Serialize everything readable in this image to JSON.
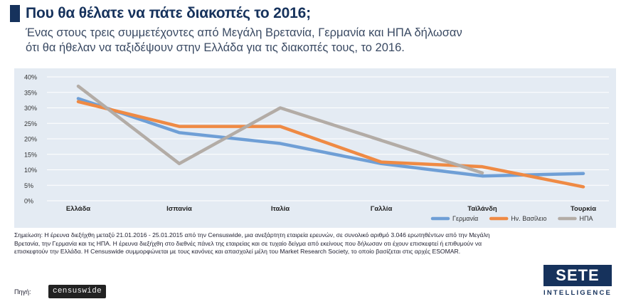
{
  "header": {
    "title": "Που θα θέλατε να πάτε διακοπές το 2016;",
    "subtitle_line1": "Ένας στους τρεις συμμετέχοντες από Μεγάλη Βρετανία, Γερμανία και ΗΠΑ δήλωσαν",
    "subtitle_line2": "ότι θα ήθελαν να ταξιδέψουν στην Ελλάδα για τις διακοπές τους, το 2016."
  },
  "chart_data": {
    "type": "line",
    "categories": [
      "Ελλάδα",
      "Ισπανία",
      "Ιταλία",
      "Γαλλία",
      "Ταϊλάνδη",
      "Τουρκία"
    ],
    "y_ticks": [
      "0%",
      "5%",
      "10%",
      "15%",
      "20%",
      "25%",
      "30%",
      "35%",
      "40%"
    ],
    "ylim": [
      0,
      40
    ],
    "grid": true,
    "legend_position": "bottom-right",
    "series": [
      {
        "name": "Γερμανία",
        "color": "#6f9fd6",
        "values": [
          33,
          22,
          18.5,
          12,
          8,
          8.8
        ]
      },
      {
        "name": "Ην. Βασίλειο",
        "color": "#ef8a44",
        "values": [
          32,
          24,
          24,
          12.5,
          11,
          4.5
        ]
      },
      {
        "name": "ΗΠΑ",
        "color": "#b3aca6",
        "values": [
          37,
          12,
          30,
          19.5,
          9,
          null
        ]
      }
    ]
  },
  "footer": {
    "note_line1": "Σημείωση: Η έρευνα διεξήχθη μεταξύ 21.01.2016 - 25.01.2015 από την Censuswide, μια ανεξάρτητη εταιρεία ερευνών, σε συνολικό αριθμό 3.046 ερωτηθέντων από την Μεγάλη",
    "note_line2": "Βρετανία, την Γερμανία και τις ΗΠΑ. Η έρευνα διεξήχθη στο διεθνές πάνελ της εταιρείας και σε τυχαίο δείγμα από εκείνους που δήλωσαν οτι έχουν επισκεφτεί ή επιθυμούν να",
    "note_line3": "επισκεφτούν την Ελλάδα. Η Censuswide συμμορφώνεται με τους κανόνες και απασχολεί μέλη του Market Research Society, το οποίο βασίζεται στις αρχές ESOMAR.",
    "source_label": "Πηγή:",
    "source_logo_text": "censuswide",
    "logo_main": "SETE",
    "logo_sub": "INTELLIGENCE"
  }
}
